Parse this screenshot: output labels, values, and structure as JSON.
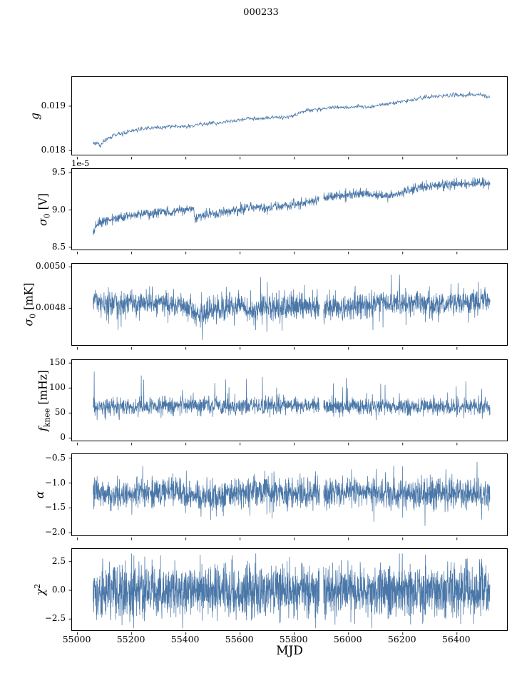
{
  "chart_data": {
    "type": "line",
    "title": "000233",
    "xlabel": "MJD",
    "line_color": "#4a77a8",
    "axis_color": "#000000",
    "xlim": [
      54980,
      56590
    ],
    "x_data_range": [
      55058,
      56522
    ],
    "xticks": [
      {
        "v": 55000,
        "label": "55000"
      },
      {
        "v": 55200,
        "label": "55200"
      },
      {
        "v": 55400,
        "label": "55400"
      },
      {
        "v": 55600,
        "label": "55600"
      },
      {
        "v": 55800,
        "label": "55800"
      },
      {
        "v": 56000,
        "label": "56000"
      },
      {
        "v": 56200,
        "label": "56200"
      },
      {
        "v": 56400,
        "label": "56400"
      }
    ],
    "panels": [
      {
        "name": "g",
        "ylabel": [
          {
            "text": "g",
            "italic": true
          }
        ],
        "ylim": [
          0.01787,
          0.01966
        ],
        "yticks": [
          {
            "v": 0.018,
            "label": "0.018"
          },
          {
            "v": 0.019,
            "label": "0.019"
          }
        ],
        "offset_text": "",
        "gaps": [],
        "series_model": {
          "npoints": 900,
          "seed": 11,
          "noise_sigma": 2.2e-05,
          "spike_prob": 0.004,
          "spike_amp": [
            2e-05,
            6e-05
          ],
          "up_bias": 0.5,
          "clip": [
            0.01795,
            0.01952
          ],
          "trend": [
            [
              55058,
              0.01812
            ],
            [
              55075,
              0.01818
            ],
            [
              55085,
              0.01808
            ],
            [
              55100,
              0.01822
            ],
            [
              55130,
              0.01832
            ],
            [
              55170,
              0.0184
            ],
            [
              55210,
              0.01845
            ],
            [
              55260,
              0.0185
            ],
            [
              55310,
              0.01852
            ],
            [
              55360,
              0.01856
            ],
            [
              55400,
              0.01853
            ],
            [
              55440,
              0.01858
            ],
            [
              55480,
              0.0186
            ],
            [
              55520,
              0.01862
            ],
            [
              55560,
              0.01866
            ],
            [
              55600,
              0.01868
            ],
            [
              55630,
              0.01874
            ],
            [
              55660,
              0.0187
            ],
            [
              55700,
              0.01873
            ],
            [
              55740,
              0.01876
            ],
            [
              55780,
              0.01876
            ],
            [
              55810,
              0.01882
            ],
            [
              55840,
              0.0189
            ],
            [
              55880,
              0.01893
            ],
            [
              55920,
              0.01895
            ],
            [
              55960,
              0.01898
            ],
            [
              56000,
              0.01897
            ],
            [
              56040,
              0.019
            ],
            [
              56080,
              0.01898
            ],
            [
              56120,
              0.01903
            ],
            [
              56160,
              0.01906
            ],
            [
              56200,
              0.01912
            ],
            [
              56240,
              0.01914
            ],
            [
              56280,
              0.0192
            ],
            [
              56320,
              0.01922
            ],
            [
              56360,
              0.01924
            ],
            [
              56400,
              0.01926
            ],
            [
              56440,
              0.01925
            ],
            [
              56480,
              0.01927
            ],
            [
              56522,
              0.0192
            ]
          ]
        }
      },
      {
        "name": "sigma0_V",
        "ylabel": [
          {
            "text": "σ",
            "italic": true
          },
          {
            "text": "0",
            "sub": true
          },
          {
            "text": " [V]"
          }
        ],
        "ylim": [
          8.45,
          9.55
        ],
        "yticks": [
          {
            "v": 8.5,
            "label": "8.5"
          },
          {
            "v": 9.0,
            "label": "9.0"
          },
          {
            "v": 9.5,
            "label": "9.5"
          }
        ],
        "offset_text": "1e-5",
        "gaps": [
          [
            55893,
            55908
          ]
        ],
        "series_model": {
          "npoints": 1600,
          "seed": 22,
          "noise_sigma": 0.034,
          "spike_prob": 0.006,
          "spike_amp": [
            0.05,
            0.1
          ],
          "up_bias": 0.5,
          "clip": [
            8.55,
            9.48
          ],
          "trend": [
            [
              55058,
              8.7
            ],
            [
              55070,
              8.8
            ],
            [
              55090,
              8.84
            ],
            [
              55120,
              8.87
            ],
            [
              55160,
              8.9
            ],
            [
              55200,
              8.92
            ],
            [
              55240,
              8.95
            ],
            [
              55280,
              8.96
            ],
            [
              55320,
              8.96
            ],
            [
              55360,
              8.98
            ],
            [
              55400,
              9.0
            ],
            [
              55428,
              9.02
            ],
            [
              55432,
              8.88
            ],
            [
              55460,
              8.92
            ],
            [
              55500,
              8.95
            ],
            [
              55540,
              8.97
            ],
            [
              55580,
              9.0
            ],
            [
              55620,
              9.02
            ],
            [
              55660,
              9.03
            ],
            [
              55700,
              9.03
            ],
            [
              55740,
              9.05
            ],
            [
              55780,
              9.05
            ],
            [
              55820,
              9.08
            ],
            [
              55860,
              9.12
            ],
            [
              55900,
              9.15
            ],
            [
              55940,
              9.18
            ],
            [
              55980,
              9.2
            ],
            [
              56020,
              9.2
            ],
            [
              56060,
              9.22
            ],
            [
              56100,
              9.2
            ],
            [
              56140,
              9.18
            ],
            [
              56180,
              9.22
            ],
            [
              56220,
              9.26
            ],
            [
              56260,
              9.3
            ],
            [
              56300,
              9.33
            ],
            [
              56340,
              9.34
            ],
            [
              56380,
              9.35
            ],
            [
              56420,
              9.36
            ],
            [
              56460,
              9.35
            ],
            [
              56500,
              9.36
            ],
            [
              56522,
              9.34
            ]
          ]
        }
      },
      {
        "name": "sigma0_mK",
        "ylabel": [
          {
            "text": "σ",
            "italic": true
          },
          {
            "text": "0",
            "sub": true
          },
          {
            "text": " [mK]"
          }
        ],
        "ylim": [
          0.004615,
          0.005015
        ],
        "yticks": [
          {
            "v": 0.0048,
            "label": "0.0048"
          },
          {
            "v": 0.005,
            "label": "0.0050"
          }
        ],
        "offset_text": "",
        "gaps": [
          [
            55893,
            55908
          ]
        ],
        "series_model": {
          "npoints": 1900,
          "seed": 33,
          "noise_sigma": 3e-05,
          "spike_prob": 0.03,
          "spike_amp": [
            4e-05,
            0.00011
          ],
          "up_bias": 0.45,
          "clip": [
            0.004645,
            0.004985
          ],
          "trend": [
            [
              55058,
              0.00484
            ],
            [
              55100,
              0.00483
            ],
            [
              55150,
              0.00482
            ],
            [
              55200,
              0.00482
            ],
            [
              55250,
              0.00483
            ],
            [
              55300,
              0.00482
            ],
            [
              55350,
              0.00482
            ],
            [
              55420,
              0.0048
            ],
            [
              55445,
              0.00476
            ],
            [
              55470,
              0.00477
            ],
            [
              55500,
              0.00479
            ],
            [
              55540,
              0.0048
            ],
            [
              55580,
              0.00481
            ],
            [
              55620,
              0.0048
            ],
            [
              55650,
              0.00478
            ],
            [
              55680,
              0.0048
            ],
            [
              55720,
              0.00481
            ],
            [
              55760,
              0.0048
            ],
            [
              55800,
              0.00481
            ],
            [
              55850,
              0.00481
            ],
            [
              55900,
              0.00481
            ],
            [
              55950,
              0.00481
            ],
            [
              56000,
              0.00481
            ],
            [
              56050,
              0.00482
            ],
            [
              56100,
              0.00482
            ],
            [
              56150,
              0.00482
            ],
            [
              56200,
              0.00482
            ],
            [
              56250,
              0.00483
            ],
            [
              56300,
              0.00482
            ],
            [
              56350,
              0.00482
            ],
            [
              56400,
              0.00483
            ],
            [
              56450,
              0.00483
            ],
            [
              56522,
              0.00484
            ]
          ]
        }
      },
      {
        "name": "f_knee",
        "ylabel": [
          {
            "text": "f",
            "italic": true
          },
          {
            "text": "knee",
            "sub": true
          },
          {
            "text": " [mHz]"
          }
        ],
        "ylim": [
          -8,
          156
        ],
        "yticks": [
          {
            "v": 0,
            "label": "0"
          },
          {
            "v": 50,
            "label": "50"
          },
          {
            "v": 100,
            "label": "100"
          },
          {
            "v": 150,
            "label": "150"
          }
        ],
        "offset_text": "",
        "gaps": [
          [
            55893,
            55908
          ]
        ],
        "series_model": {
          "npoints": 1900,
          "seed": 44,
          "noise_sigma": 8.5,
          "spike_prob": 0.025,
          "spike_amp": [
            15,
            60
          ],
          "up_bias": 0.93,
          "clip": [
            36,
            150
          ],
          "trend": [
            [
              55058,
              62
            ],
            [
              55200,
              63
            ],
            [
              55300,
              64
            ],
            [
              55420,
              68
            ],
            [
              55480,
              66
            ],
            [
              55600,
              63
            ],
            [
              55700,
              64
            ],
            [
              55800,
              65
            ],
            [
              55900,
              62
            ],
            [
              56000,
              62
            ],
            [
              56100,
              64
            ],
            [
              56200,
              63
            ],
            [
              56300,
              62
            ],
            [
              56400,
              63
            ],
            [
              56522,
              62
            ]
          ]
        }
      },
      {
        "name": "alpha",
        "ylabel": [
          {
            "text": "α",
            "italic": true
          }
        ],
        "ylim": [
          -2.08,
          -0.42
        ],
        "yticks": [
          {
            "v": -0.5,
            "label": "−0.5"
          },
          {
            "v": -1.0,
            "label": "−1.0"
          },
          {
            "v": -1.5,
            "label": "−1.5"
          },
          {
            "v": -2.0,
            "label": "−2.0"
          }
        ],
        "offset_text": "",
        "gaps": [
          [
            55893,
            55908
          ]
        ],
        "series_model": {
          "npoints": 1900,
          "seed": 55,
          "noise_sigma": 0.155,
          "spike_prob": 0.012,
          "spike_amp": [
            0.2,
            0.5
          ],
          "up_bias": 0.5,
          "clip": [
            -1.98,
            -0.55
          ],
          "trend": [
            [
              55058,
              -1.2
            ],
            [
              55150,
              -1.22
            ],
            [
              55250,
              -1.2
            ],
            [
              55350,
              -1.18
            ],
            [
              55430,
              -1.25
            ],
            [
              55500,
              -1.28
            ],
            [
              55560,
              -1.22
            ],
            [
              55650,
              -1.18
            ],
            [
              55750,
              -1.2
            ],
            [
              55850,
              -1.25
            ],
            [
              55900,
              -1.2
            ],
            [
              56000,
              -1.18
            ],
            [
              56100,
              -1.22
            ],
            [
              56200,
              -1.25
            ],
            [
              56300,
              -1.22
            ],
            [
              56400,
              -1.2
            ],
            [
              56522,
              -1.2
            ]
          ]
        }
      },
      {
        "name": "chi2",
        "ylabel": [
          {
            "text": "χ",
            "italic": true
          },
          {
            "text": "2",
            "sup": true
          }
        ],
        "ylim": [
          -3.6,
          3.6
        ],
        "yticks": [
          {
            "v": -2.5,
            "label": "−2.5"
          },
          {
            "v": 0.0,
            "label": "0.0"
          },
          {
            "v": 2.5,
            "label": "2.5"
          }
        ],
        "offset_text": "",
        "gaps": [
          [
            55893,
            55908
          ]
        ],
        "series_model": {
          "npoints": 2300,
          "seed": 66,
          "noise_sigma": 1.12,
          "spike_prob": 0.02,
          "spike_amp": [
            0.5,
            1.6
          ],
          "up_bias": 0.5,
          "clip": [
            -3.3,
            3.2
          ],
          "trend": [
            [
              55058,
              0
            ],
            [
              56522,
              0
            ]
          ]
        }
      }
    ]
  }
}
